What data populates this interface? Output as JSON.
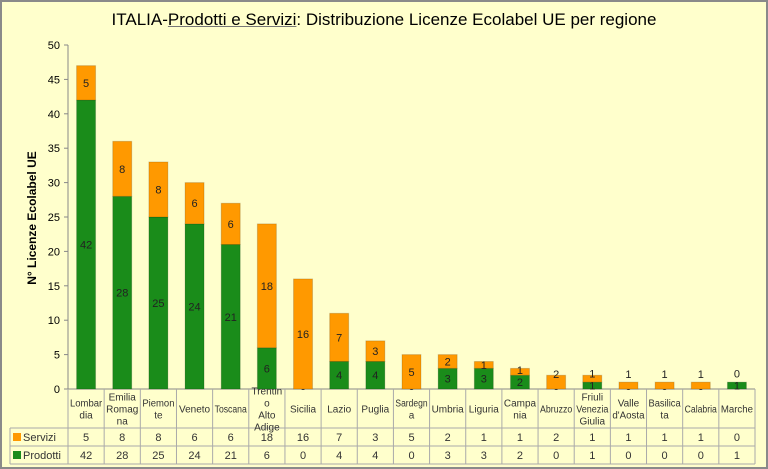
{
  "chart_data": {
    "type": "bar",
    "stacked": true,
    "title_parts": [
      "ITALIA-",
      "Prodotti e Servizi",
      ": Distribuzione Licenze Ecolabel UE  per regione"
    ],
    "xlabel": "",
    "ylabel": "N° Licenze  Ecolabel  UE",
    "ylim": [
      0,
      50
    ],
    "yticks": [
      0,
      5,
      10,
      15,
      20,
      25,
      30,
      35,
      40,
      45,
      50
    ],
    "grid": false,
    "legend": "data-table-left",
    "categories": [
      "Lombar dia",
      "Emilia Romag na",
      "Piemon te",
      "Veneto",
      "Toscana",
      "Trentin o Alto Adige",
      "Sicilia",
      "Lazio",
      "Puglia",
      "Sardegn a",
      "Umbria",
      "Liguria",
      "Campa nia",
      "Abruzzo",
      "Friuli Venezia Giulia",
      "Valle d'Aosta",
      "Basilica ta",
      "Calabria",
      "Marche"
    ],
    "series": [
      {
        "name": "Prodotti",
        "color": "#1a8c1a",
        "values": [
          42,
          28,
          25,
          24,
          21,
          6,
          0,
          4,
          4,
          0,
          3,
          3,
          2,
          0,
          1,
          0,
          0,
          0,
          1
        ]
      },
      {
        "name": "Servizi",
        "color": "#ff9900",
        "values": [
          5,
          8,
          8,
          6,
          6,
          18,
          16,
          7,
          3,
          5,
          2,
          1,
          1,
          2,
          1,
          1,
          1,
          1,
          0
        ]
      }
    ]
  }
}
